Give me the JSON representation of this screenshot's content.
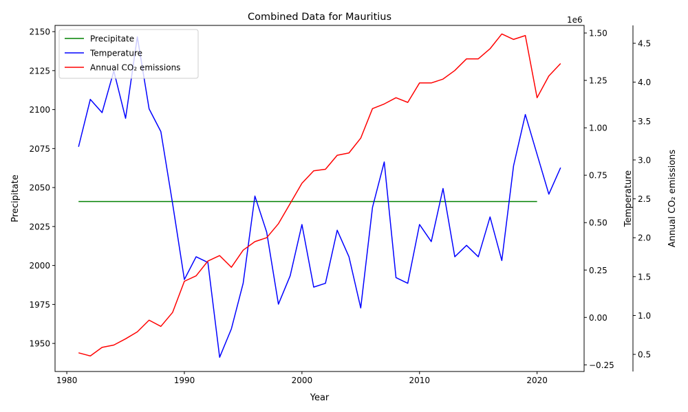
{
  "chart_data": {
    "type": "line",
    "title": "Combined Data for Mauritius",
    "xlabel": "Year",
    "xlim": [
      1979,
      2024
    ],
    "xticks": [
      1980,
      1990,
      2000,
      2010,
      2020
    ],
    "legend_position": "top-left",
    "grid": false,
    "axes": [
      {
        "id": "left",
        "label": "Precipitate",
        "color": "#008000",
        "ylim": [
          1932,
          2154
        ],
        "ticks": [
          1950,
          1975,
          2000,
          2025,
          2050,
          2075,
          2100,
          2125,
          2150
        ],
        "tick_labels": [
          "1950",
          "1975",
          "2000",
          "2025",
          "2050",
          "2075",
          "2100",
          "2125",
          "2150"
        ],
        "offset_label": ""
      },
      {
        "id": "right1",
        "label": "Temperature",
        "color": "#0000ff",
        "ylim": [
          -0.285,
          1.54
        ],
        "ticks": [
          -0.25,
          0.0,
          0.25,
          0.5,
          0.75,
          1.0,
          1.25,
          1.5
        ],
        "tick_labels": [
          "−0.25",
          "0.00",
          "0.25",
          "0.50",
          "0.75",
          "1.00",
          "1.25",
          "1.50"
        ],
        "offset_label": "1e6"
      },
      {
        "id": "right2",
        "label": "Annual CO₂ emissions",
        "color": "#ff0000",
        "ylim": [
          0.28,
          4.73
        ],
        "ticks": [
          0.5,
          1.0,
          1.5,
          2.0,
          2.5,
          3.0,
          3.5,
          4.0,
          4.5
        ],
        "tick_labels": [
          "0.5",
          "1.0",
          "1.5",
          "2.0",
          "2.5",
          "3.0",
          "3.5",
          "4.0",
          "4.5"
        ],
        "offset_label": ""
      }
    ],
    "series": [
      {
        "name": "Precipitate",
        "axis": "left",
        "color": "#008000",
        "x": [
          1981,
          1982,
          1983,
          1984,
          1985,
          1986,
          1987,
          1988,
          1989,
          1990,
          1991,
          1992,
          1993,
          1994,
          1995,
          1996,
          1997,
          1998,
          1999,
          2000,
          2001,
          2002,
          2003,
          2004,
          2005,
          2006,
          2007,
          2008,
          2009,
          2010,
          2011,
          2012,
          2013,
          2014,
          2015,
          2016,
          2017,
          2018,
          2019,
          2020
        ],
        "y": [
          2041,
          2041,
          2041,
          2041,
          2041,
          2041,
          2041,
          2041,
          2041,
          2041,
          2041,
          2041,
          2041,
          2041,
          2041,
          2041,
          2041,
          2041,
          2041,
          2041,
          2041,
          2041,
          2041,
          2041,
          2041,
          2041,
          2041,
          2041,
          2041,
          2041,
          2041,
          2041,
          2041,
          2041,
          2041,
          2041,
          2041,
          2041,
          2041,
          2041
        ]
      },
      {
        "name": "Temperature",
        "axis": "right1",
        "color": "#0000ff",
        "x": [
          1981,
          1982,
          1983,
          1984,
          1985,
          1986,
          1987,
          1988,
          1989,
          1990,
          1991,
          1992,
          1993,
          1994,
          1995,
          1996,
          1997,
          1998,
          1999,
          2000,
          2001,
          2002,
          2003,
          2004,
          2005,
          2006,
          2007,
          2008,
          2009,
          2010,
          2011,
          2012,
          2013,
          2014,
          2015,
          2016,
          2017,
          2018,
          2019,
          2020,
          2021,
          2022
        ],
        "y": [
          0.9,
          1.15,
          1.08,
          1.3,
          1.05,
          1.48,
          1.1,
          0.98,
          0.6,
          0.2,
          0.32,
          0.29,
          -0.21,
          -0.06,
          0.18,
          0.64,
          0.45,
          0.07,
          0.22,
          0.49,
          0.16,
          0.18,
          0.46,
          0.32,
          0.05,
          0.58,
          0.82,
          0.21,
          0.18,
          0.49,
          0.4,
          0.68,
          0.32,
          0.38,
          0.32,
          0.53,
          0.3,
          0.8,
          1.07,
          0.86,
          0.65,
          0.79
        ]
      },
      {
        "name": "Annual CO₂ emissions",
        "axis": "right2",
        "color": "#ff0000",
        "x": [
          1981,
          1982,
          1983,
          1984,
          1985,
          1986,
          1987,
          1988,
          1989,
          1990,
          1991,
          1992,
          1993,
          1994,
          1995,
          1996,
          1997,
          1998,
          1999,
          2000,
          2001,
          2002,
          2003,
          2004,
          2005,
          2006,
          2007,
          2008,
          2009,
          2010,
          2011,
          2012,
          2013,
          2014,
          2015,
          2016,
          2017,
          2018,
          2019,
          2020,
          2021,
          2022
        ],
        "y": [
          0.52,
          0.48,
          0.59,
          0.62,
          0.7,
          0.79,
          0.94,
          0.86,
          1.04,
          1.44,
          1.51,
          1.7,
          1.77,
          1.62,
          1.84,
          1.95,
          2.0,
          2.18,
          2.44,
          2.7,
          2.86,
          2.88,
          3.06,
          3.09,
          3.28,
          3.66,
          3.72,
          3.8,
          3.74,
          3.99,
          3.99,
          4.04,
          4.15,
          4.3,
          4.3,
          4.43,
          4.62,
          4.55,
          4.6,
          3.8,
          4.08,
          4.24
        ]
      }
    ]
  }
}
